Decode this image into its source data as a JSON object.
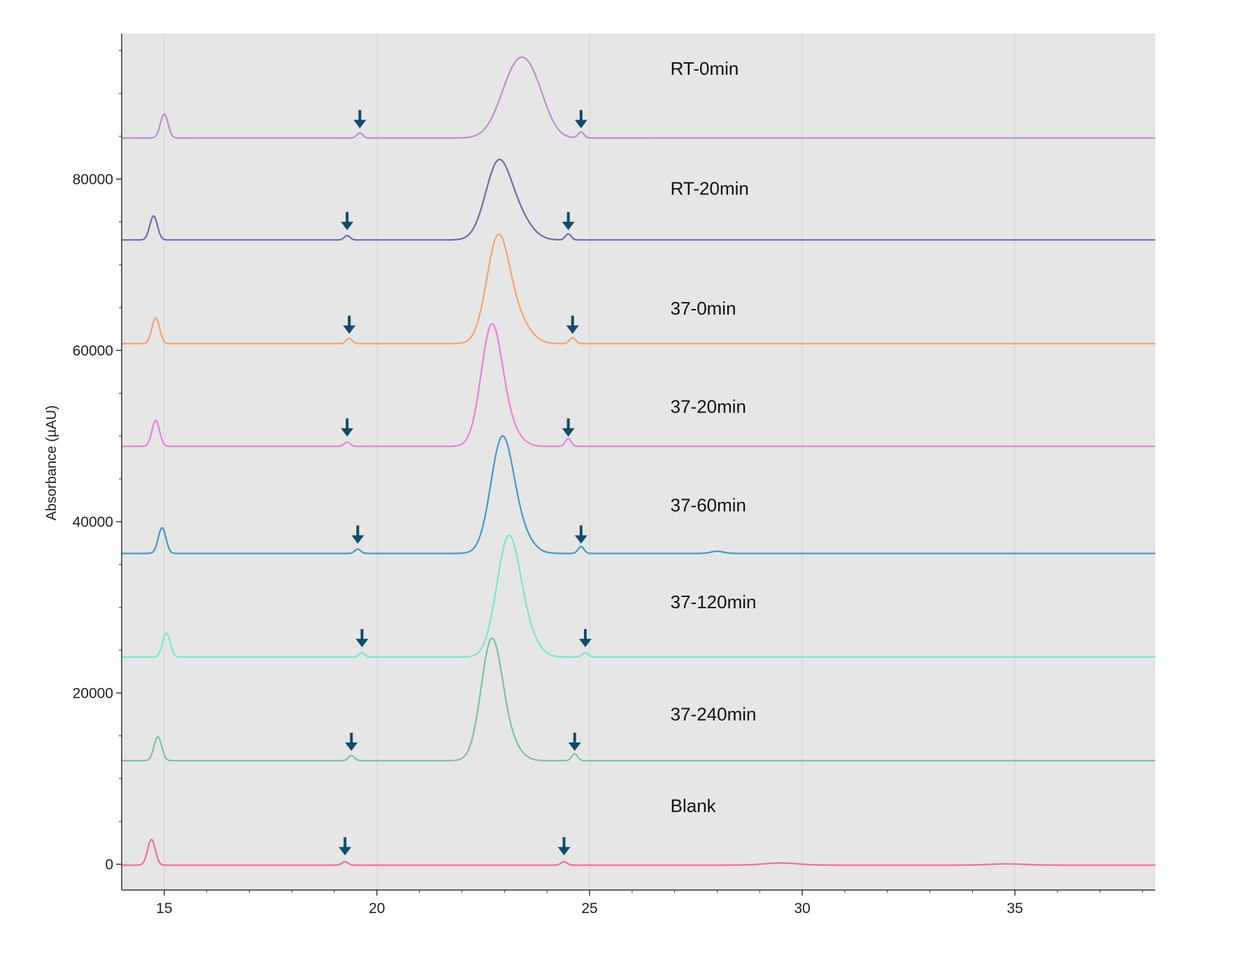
{
  "chart_data": {
    "type": "line",
    "title": "",
    "xlabel": "",
    "ylabel": "Absorbance (µAU)",
    "xlim": [
      14,
      38.3
    ],
    "ylim": [
      -3000,
      97000
    ],
    "x_ticks": [
      15,
      20,
      25,
      30,
      35
    ],
    "y_ticks": [
      0,
      20000,
      40000,
      60000,
      80000
    ],
    "grid": true,
    "legend": "labels placed beside each trace",
    "arrow_color": "#0f4c6b",
    "series": [
      {
        "name": "RT-0min",
        "color": "#c389d3",
        "baseline": 84800,
        "label_x": 26.9,
        "label_y": 92200,
        "arrows": [
          19.6,
          24.8
        ],
        "peaks": [
          {
            "x": 15.0,
            "h": 2800,
            "w": 0.09
          },
          {
            "x": 19.6,
            "h": 600,
            "w": 0.07
          },
          {
            "x": 23.3,
            "h": 8200,
            "w": 0.38
          },
          {
            "x": 23.75,
            "h": 3000,
            "w": 0.3
          },
          {
            "x": 24.8,
            "h": 700,
            "w": 0.07
          }
        ]
      },
      {
        "name": "RT-20min",
        "color": "#6e6aad",
        "baseline": 72900,
        "label_x": 26.9,
        "label_y": 78200,
        "arrows": [
          19.3,
          24.5
        ],
        "peaks": [
          {
            "x": 14.75,
            "h": 2800,
            "w": 0.09
          },
          {
            "x": 19.3,
            "h": 500,
            "w": 0.07
          },
          {
            "x": 22.85,
            "h": 8800,
            "w": 0.3
          },
          {
            "x": 23.35,
            "h": 2200,
            "w": 0.3
          },
          {
            "x": 24.5,
            "h": 700,
            "w": 0.07
          }
        ]
      },
      {
        "name": "37-0min",
        "color": "#f2a36f",
        "baseline": 60800,
        "label_x": 26.9,
        "label_y": 64200,
        "arrows": [
          19.35,
          24.6
        ],
        "peaks": [
          {
            "x": 14.8,
            "h": 3000,
            "w": 0.09
          },
          {
            "x": 19.35,
            "h": 600,
            "w": 0.07
          },
          {
            "x": 22.85,
            "h": 12300,
            "w": 0.27
          },
          {
            "x": 23.35,
            "h": 2200,
            "w": 0.28
          },
          {
            "x": 24.6,
            "h": 700,
            "w": 0.07
          }
        ]
      },
      {
        "name": "37-20min",
        "color": "#eb7ee0",
        "baseline": 48800,
        "label_x": 26.9,
        "label_y": 52700,
        "arrows": [
          19.3,
          24.5
        ],
        "peaks": [
          {
            "x": 14.8,
            "h": 3000,
            "w": 0.09
          },
          {
            "x": 19.3,
            "h": 500,
            "w": 0.07
          },
          {
            "x": 22.7,
            "h": 14000,
            "w": 0.25
          },
          {
            "x": 23.15,
            "h": 1500,
            "w": 0.25
          },
          {
            "x": 24.5,
            "h": 900,
            "w": 0.07
          }
        ]
      },
      {
        "name": "37-60min",
        "color": "#3f99c7",
        "baseline": 36300,
        "label_x": 26.9,
        "label_y": 41200,
        "arrows": [
          19.55,
          24.8
        ],
        "peaks": [
          {
            "x": 14.95,
            "h": 3000,
            "w": 0.09
          },
          {
            "x": 19.55,
            "h": 500,
            "w": 0.07
          },
          {
            "x": 22.95,
            "h": 13500,
            "w": 0.27
          },
          {
            "x": 23.45,
            "h": 1500,
            "w": 0.25
          },
          {
            "x": 24.8,
            "h": 800,
            "w": 0.07
          },
          {
            "x": 28.0,
            "h": 250,
            "w": 0.15
          }
        ]
      },
      {
        "name": "37-120min",
        "color": "#78e3d8",
        "baseline": 24200,
        "label_x": 26.9,
        "label_y": 29900,
        "arrows": [
          19.65,
          24.9
        ],
        "peaks": [
          {
            "x": 15.05,
            "h": 2800,
            "w": 0.09
          },
          {
            "x": 19.65,
            "h": 500,
            "w": 0.07
          },
          {
            "x": 23.1,
            "h": 14000,
            "w": 0.28
          },
          {
            "x": 23.6,
            "h": 1500,
            "w": 0.25
          },
          {
            "x": 24.9,
            "h": 500,
            "w": 0.07
          }
        ]
      },
      {
        "name": "37-240min",
        "color": "#7bc591",
        "baseline": 12100,
        "label_x": 26.9,
        "label_y": 16800,
        "arrows": [
          19.4,
          24.65
        ],
        "peaks": [
          {
            "x": 14.85,
            "h": 2800,
            "w": 0.09
          },
          {
            "x": 19.4,
            "h": 600,
            "w": 0.07
          },
          {
            "x": 22.7,
            "h": 14000,
            "w": 0.25
          },
          {
            "x": 23.15,
            "h": 1500,
            "w": 0.25
          },
          {
            "x": 24.65,
            "h": 800,
            "w": 0.07
          }
        ]
      },
      {
        "name": "Blank",
        "color": "#f0708e",
        "baseline": -100,
        "label_x": 26.9,
        "label_y": 6100,
        "arrows": [
          19.25,
          24.4
        ],
        "peaks": [
          {
            "x": 14.7,
            "h": 3000,
            "w": 0.09
          },
          {
            "x": 19.25,
            "h": 400,
            "w": 0.07
          },
          {
            "x": 24.4,
            "h": 400,
            "w": 0.07
          },
          {
            "x": 29.5,
            "h": 250,
            "w": 0.4
          },
          {
            "x": 34.8,
            "h": 150,
            "w": 0.4
          }
        ]
      }
    ]
  }
}
